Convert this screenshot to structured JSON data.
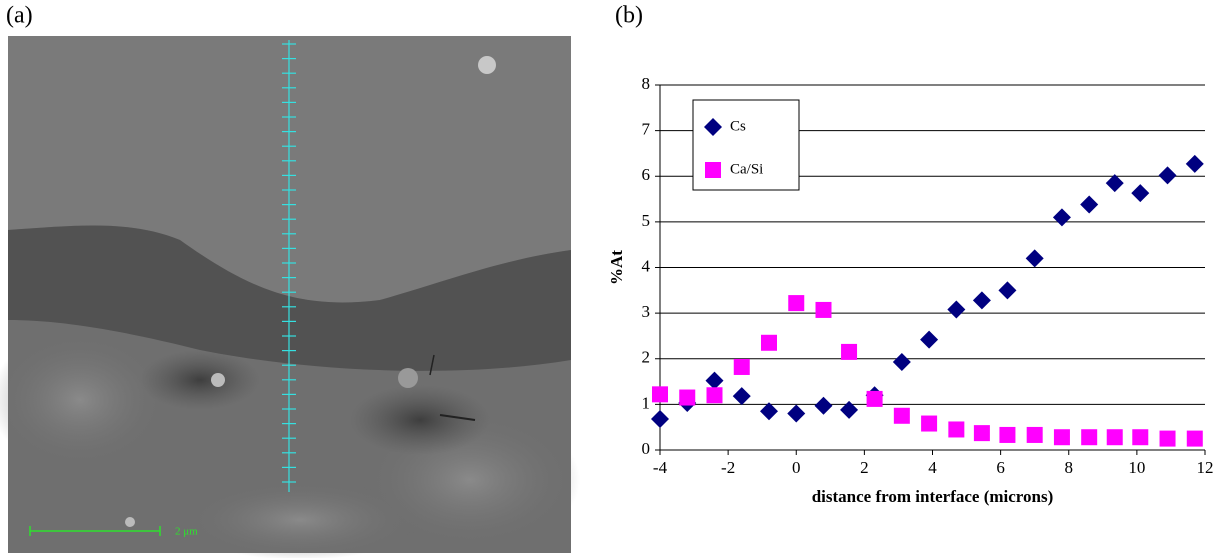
{
  "panel_labels": [
    "(a)",
    "(b)"
  ],
  "image": {
    "scale_label": "2 μm"
  },
  "chart_data": {
    "type": "scatter",
    "x": [
      -4,
      -3.2,
      -2.4,
      -1.6,
      -0.8,
      0,
      0.8,
      1.55,
      2.3,
      3.1,
      3.9,
      4.7,
      5.45,
      6.2,
      7.0,
      7.8,
      8.6,
      9.35,
      10.1,
      10.9,
      11.7
    ],
    "series": [
      {
        "name": "Cs",
        "color": "#000080",
        "marker": "diamond",
        "values": [
          0.68,
          1.03,
          1.52,
          1.18,
          0.85,
          0.8,
          0.97,
          0.88,
          1.2,
          1.93,
          2.42,
          3.08,
          3.28,
          3.5,
          4.2,
          5.1,
          5.38,
          5.85,
          5.63,
          6.02,
          6.27
        ]
      },
      {
        "name": "Ca/Si",
        "color": "#ff00ff",
        "marker": "square",
        "values": [
          1.22,
          1.15,
          1.2,
          1.82,
          2.35,
          3.22,
          3.07,
          2.15,
          1.12,
          0.75,
          0.58,
          0.45,
          0.37,
          0.33,
          0.33,
          0.28,
          0.28,
          0.28,
          0.28,
          0.25,
          0.25
        ]
      }
    ],
    "xlabel": "distance from interface (microns)",
    "ylabel": "%At",
    "xlim": [
      -4,
      12
    ],
    "xticks": [
      -4,
      -2,
      0,
      2,
      4,
      6,
      8,
      10,
      12
    ],
    "ylim": [
      0,
      8
    ],
    "yticks": [
      0,
      1,
      2,
      3,
      4,
      5,
      6,
      7,
      8
    ],
    "grid": true,
    "legend": "top-left"
  }
}
